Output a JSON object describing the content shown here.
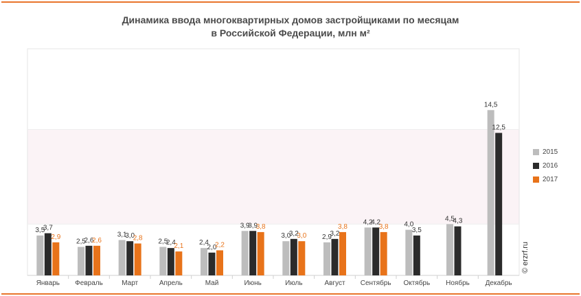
{
  "title_line1": "Динамика ввода многоквартирных домов застройщиками по месяцам",
  "title_line2": "в Российской  Федерации, млн м²",
  "watermark": "© erzrf.ru",
  "colors": {
    "accent": "#e8732a",
    "s2015": "#bdbdbd",
    "s2016": "#2b2b2b",
    "s2017": "#e8731a",
    "band": "#fbf3f6"
  },
  "chart_data": {
    "type": "bar",
    "title": "Динамика ввода многоквартирных домов застройщиками по месяцам в Российской  Федерации, млн м²",
    "xlabel": "",
    "ylabel": "",
    "ylim": [
      0,
      16
    ],
    "grid": false,
    "legend_position": "right",
    "categories": [
      "Январь",
      "Февраль",
      "Март",
      "Апрель",
      "Май",
      "Июнь",
      "Июль",
      "Август",
      "Сентябрь",
      "Октябрь",
      "Ноябрь",
      "Декабрь"
    ],
    "series": [
      {
        "name": "2015",
        "color": "#bdbdbd",
        "label_color": "#333333",
        "values": [
          3.5,
          2.5,
          3.1,
          2.5,
          2.4,
          3.9,
          3.0,
          2.9,
          4.2,
          4.0,
          4.5,
          14.5
        ],
        "labels": [
          "3,5",
          "2,5",
          "3,1",
          "2,5",
          "2,4",
          "3,9",
          "3,0",
          "2,9",
          "4,2",
          "4,0",
          "4,5",
          "14,5"
        ]
      },
      {
        "name": "2016",
        "color": "#2b2b2b",
        "label_color": "#333333",
        "values": [
          3.7,
          2.6,
          3.0,
          2.4,
          2.0,
          3.9,
          3.2,
          3.2,
          4.2,
          3.5,
          4.3,
          12.5
        ],
        "labels": [
          "3,7",
          "2,6",
          "3,0",
          "2,4",
          "2,0",
          "3,9",
          "3,2",
          "3,2",
          "4,2",
          "3,5",
          "4,3",
          "12,5"
        ]
      },
      {
        "name": "2017",
        "color": "#e8731a",
        "label_color": "#e8731a",
        "values": [
          2.9,
          2.6,
          2.8,
          2.1,
          2.2,
          3.8,
          3.0,
          3.8,
          3.8,
          null,
          null,
          null
        ],
        "labels": [
          "2,9",
          "2,6",
          "2,8",
          "2,1",
          "2,2",
          "3,8",
          "3,0",
          "3,8",
          "3,8",
          "",
          "",
          ""
        ]
      }
    ]
  }
}
